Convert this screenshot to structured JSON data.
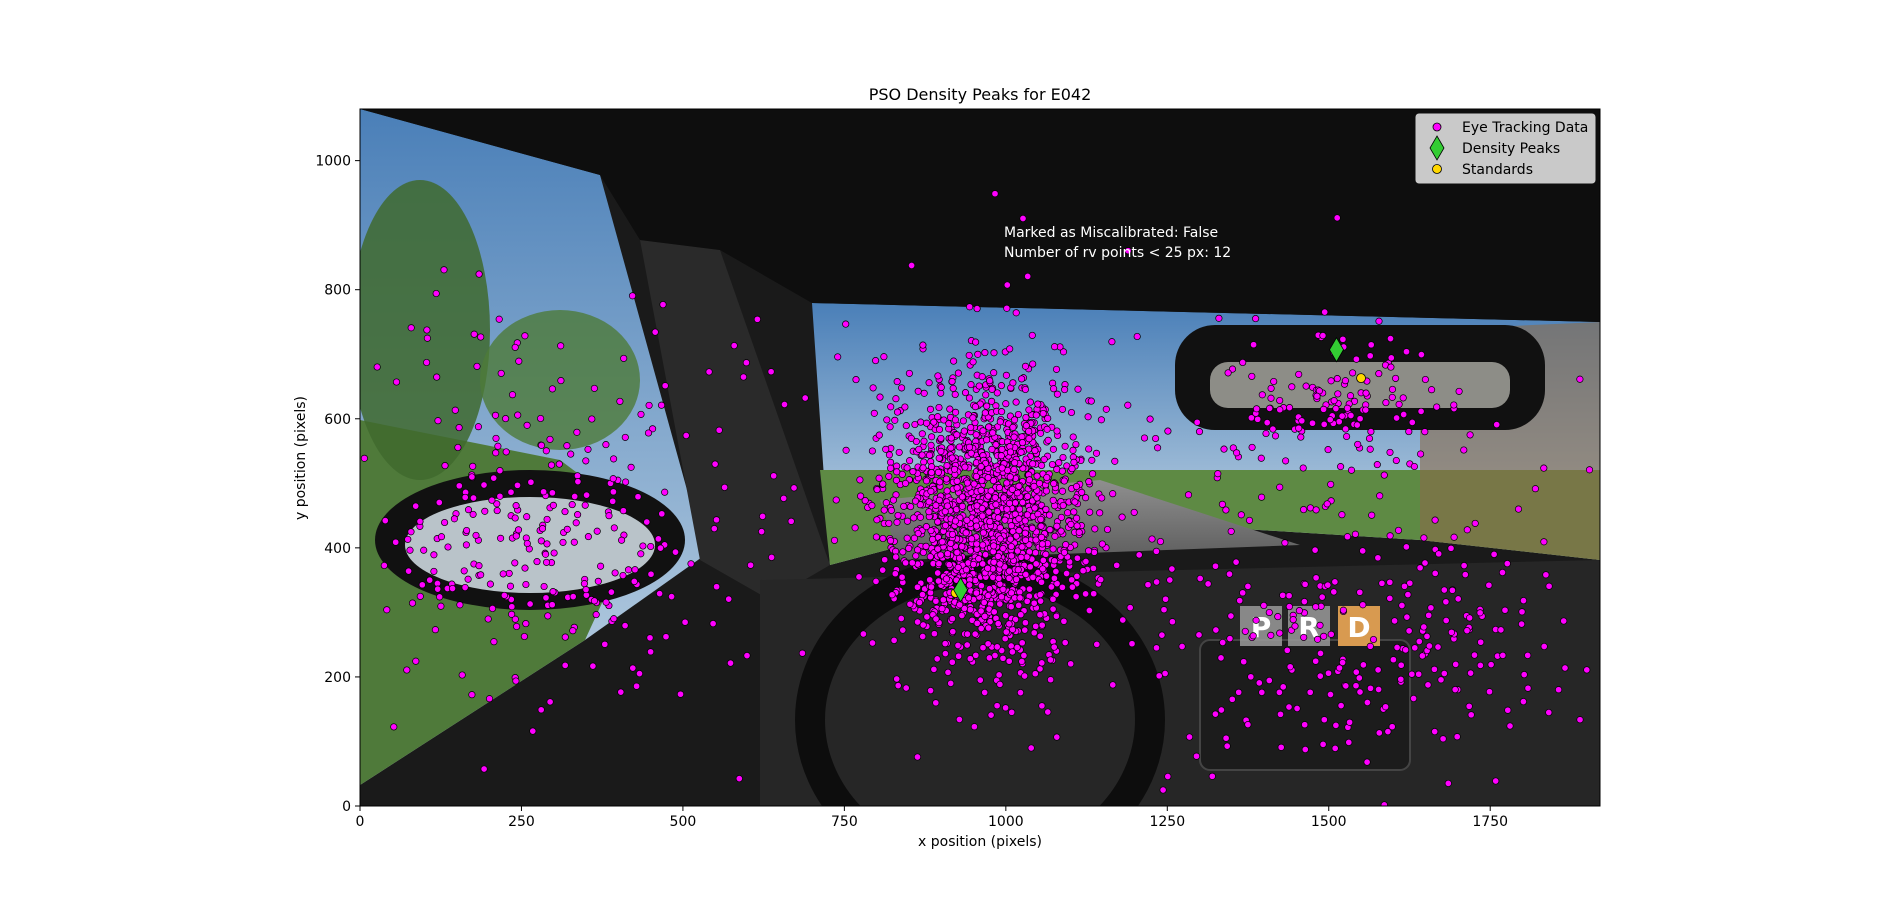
{
  "chart_data": {
    "type": "scatter",
    "title": "PSO Density Peaks for E042",
    "xlabel": "x position (pixels)",
    "ylabel": "y position (pixels)",
    "xlim": [
      0,
      1920
    ],
    "ylim": [
      0,
      1080
    ],
    "x_ticks": [
      0,
      250,
      500,
      750,
      1000,
      1250,
      1500,
      1750
    ],
    "y_ticks": [
      0,
      200,
      400,
      600,
      800,
      1000
    ],
    "grid": false,
    "legend_position": "top-right",
    "background": "driving simulator cockpit view (photo backdrop)",
    "annotations": [
      "Marked as Miscalibrated: False",
      "Number of rv points < 25 px: 12"
    ],
    "series": [
      {
        "name": "Eye Tracking Data",
        "marker": "circle",
        "color": "#ff00ff",
        "cluster_summary": [
          {
            "center": [
              970,
              450
            ],
            "spread": [
              75,
              110
            ],
            "share": 0.68
          },
          {
            "center": [
              1500,
              620
            ],
            "spread": [
              90,
              50
            ],
            "share": 0.05
          },
          {
            "center": [
              260,
              430
            ],
            "spread": [
              150,
              150
            ],
            "share": 0.12
          },
          {
            "center": [
              1580,
              260
            ],
            "spread": [
              180,
              110
            ],
            "share": 0.1
          },
          {
            "center": [
              1150,
              450
            ],
            "spread": [
              400,
              220
            ],
            "share": 0.05
          }
        ],
        "approx_point_count": 2600
      },
      {
        "name": "Density Peaks",
        "marker": "diamond",
        "color": "#33cc33",
        "points": [
          [
            930,
            335
          ],
          [
            1512,
            707
          ]
        ]
      },
      {
        "name": "Standards",
        "marker": "circle",
        "color": "#ffd700",
        "points": [
          [
            922,
            330
          ],
          [
            1550,
            663
          ]
        ]
      }
    ]
  }
}
